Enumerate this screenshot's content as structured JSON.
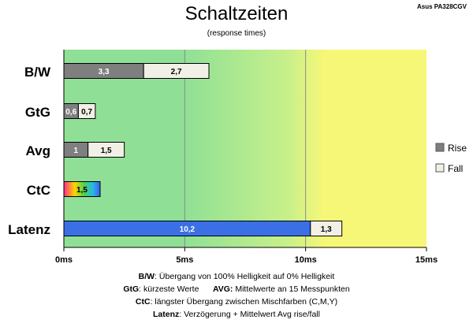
{
  "device": "Asus PA328CGV",
  "chart_data": {
    "type": "bar",
    "orientation": "horizontal",
    "stacked": true,
    "title": "Schaltzeiten",
    "subtitle": "(response times)",
    "categories": [
      "B/W",
      "GtG",
      "Avg",
      "CtC",
      "Latenz"
    ],
    "series": [
      {
        "name": "Rise",
        "color": "#7f7f7f",
        "values": [
          3.3,
          0.6,
          1.0,
          null,
          null
        ]
      },
      {
        "name": "Fall",
        "color": "#f2f0e6",
        "values": [
          2.7,
          0.7,
          1.5,
          null,
          1.3
        ]
      }
    ],
    "ctc": {
      "value": 1.5,
      "label": "1,5"
    },
    "latency_base": {
      "value": 10.2,
      "label": "10,2",
      "color": "#3a6fe6"
    },
    "value_labels": {
      "rise": [
        "3,3",
        "0,6",
        "1",
        "",
        ""
      ],
      "fall": [
        "2,7",
        "0,7",
        "1,5",
        "",
        "1,3"
      ]
    },
    "x_ticks": [
      {
        "value": 0,
        "label": "0ms"
      },
      {
        "value": 5,
        "label": "5ms"
      },
      {
        "value": 10,
        "label": "10ms"
      },
      {
        "value": 15,
        "label": "15ms"
      }
    ],
    "xlim": [
      0,
      15
    ],
    "grid": true,
    "legend_position": "right",
    "legend": [
      {
        "name": "Rise",
        "color": "#7f7f7f"
      },
      {
        "name": "Fall",
        "color": "#f2f0e6"
      }
    ],
    "background_gradient": [
      "#8fe096",
      "#c8f08a",
      "#f7f777"
    ]
  },
  "footnotes": {
    "bw_term": "B/W",
    "bw_text": ":  Übergang von 100% Helligkeit auf 0% Helligkeit",
    "gtg_term": "GtG",
    "gtg_text": ": kürzeste  Werte",
    "avg_term": "AVG:",
    "avg_text": " Mittelwerte  an 15 Messpunkten",
    "ctc_term": "CtC",
    "ctc_text": ": längster Übergang  zwischen Mischfarben  (C,M,Y)",
    "lat_term": "Latenz",
    "lat_text": ": Verzögerung  + Mittelwert Avg rise/fall"
  }
}
